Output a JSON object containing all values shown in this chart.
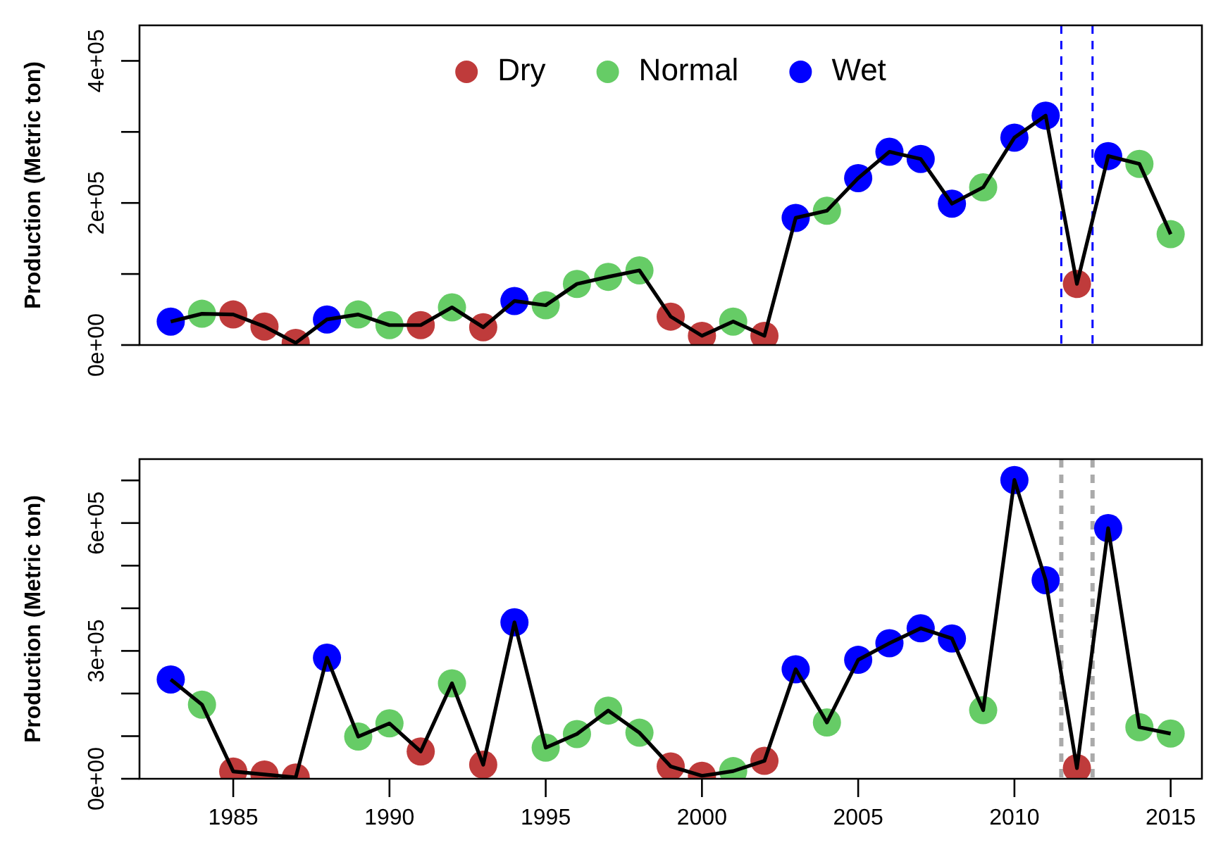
{
  "chart_data": [
    {
      "type": "line",
      "ylabel": "Production (Metric ton)",
      "x": [
        1983,
        1984,
        1985,
        1986,
        1987,
        1988,
        1989,
        1990,
        1991,
        1992,
        1993,
        1994,
        1995,
        1996,
        1997,
        1998,
        1999,
        2000,
        2001,
        2002,
        2003,
        2004,
        2005,
        2006,
        2007,
        2008,
        2009,
        2010,
        2011,
        2012,
        2013,
        2014,
        2015
      ],
      "xlim": [
        1982,
        2016
      ],
      "ylim": [
        0,
        450000
      ],
      "yticks": [
        {
          "value": 0,
          "label": "0e+00"
        },
        {
          "value": 100000,
          "label": null
        },
        {
          "value": 200000,
          "label": "2e+05"
        },
        {
          "value": 300000,
          "label": null
        },
        {
          "value": 400000,
          "label": "4e+05"
        }
      ],
      "tick_labels": "y",
      "grid": false,
      "legend": "top",
      "series": [
        {
          "marker": "none",
          "color": "#000000",
          "values": [
            33000,
            44000,
            43000,
            26000,
            3000,
            36000,
            43000,
            28000,
            28000,
            53000,
            25000,
            62000,
            56000,
            86000,
            96000,
            105000,
            40000,
            13000,
            33000,
            13000,
            179000,
            189000,
            235000,
            272000,
            262000,
            199000,
            222000,
            292000,
            323000,
            86000,
            266000,
            255000,
            156000
          ]
        },
        {
          "type": "scatter",
          "marker": "circle",
          "name": "Dry",
          "color": "#bf3b3b",
          "values": [
            null,
            null,
            43000,
            26000,
            3000,
            null,
            null,
            null,
            28000,
            null,
            25000,
            null,
            null,
            null,
            null,
            null,
            40000,
            13000,
            null,
            13000,
            null,
            null,
            null,
            null,
            null,
            null,
            null,
            null,
            null,
            86000,
            null,
            null,
            null
          ]
        },
        {
          "type": "scatter",
          "marker": "circle",
          "name": "Normal",
          "color": "#66cc66",
          "values": [
            null,
            44000,
            null,
            null,
            null,
            null,
            43000,
            28000,
            null,
            53000,
            null,
            null,
            56000,
            86000,
            96000,
            105000,
            null,
            null,
            33000,
            null,
            null,
            189000,
            null,
            null,
            null,
            null,
            222000,
            null,
            null,
            null,
            null,
            255000,
            156000
          ]
        },
        {
          "type": "scatter",
          "marker": "circle",
          "name": "Wet",
          "color": "#0000ff",
          "values": [
            33000,
            null,
            null,
            null,
            null,
            36000,
            null,
            null,
            null,
            null,
            null,
            62000,
            null,
            null,
            null,
            null,
            null,
            null,
            null,
            null,
            179000,
            null,
            235000,
            272000,
            262000,
            199000,
            null,
            292000,
            323000,
            null,
            266000,
            null,
            null
          ]
        }
      ],
      "ref_lines": [
        {
          "axis": "x",
          "value": 2011.5,
          "color": "#0000ff",
          "line_style": "dashed"
        },
        {
          "axis": "x",
          "value": 2012.5,
          "color": "#0000ff",
          "line_style": "dashed"
        }
      ]
    },
    {
      "type": "line",
      "ylabel": "Production (Metric ton)",
      "x": [
        1983,
        1984,
        1985,
        1986,
        1987,
        1988,
        1989,
        1990,
        1991,
        1992,
        1993,
        1994,
        1995,
        1996,
        1997,
        1998,
        1999,
        2000,
        2001,
        2002,
        2003,
        2004,
        2005,
        2006,
        2007,
        2008,
        2009,
        2010,
        2011,
        2012,
        2013,
        2014,
        2015
      ],
      "xlim": [
        1982,
        2016
      ],
      "xticks": [
        1985,
        1990,
        1995,
        2000,
        2005,
        2010,
        2015
      ],
      "ylim": [
        0,
        750000
      ],
      "yticks": [
        {
          "value": 0,
          "label": "0e+00"
        },
        {
          "value": 100000,
          "label": null
        },
        {
          "value": 200000,
          "label": null
        },
        {
          "value": 300000,
          "label": "3e+05"
        },
        {
          "value": 400000,
          "label": null
        },
        {
          "value": 500000,
          "label": null
        },
        {
          "value": 600000,
          "label": "6e+05"
        },
        {
          "value": 700000,
          "label": null
        }
      ],
      "grid": false,
      "series": [
        {
          "marker": "none",
          "color": "#000000",
          "values": [
            233000,
            174000,
            17000,
            10000,
            3000,
            284000,
            99000,
            130000,
            64000,
            224000,
            33000,
            367000,
            73000,
            105000,
            160000,
            108000,
            29000,
            7000,
            18000,
            42000,
            257000,
            132000,
            279000,
            318000,
            353000,
            329000,
            161000,
            701000,
            466000,
            25000,
            588000,
            121000,
            106000
          ]
        },
        {
          "type": "scatter",
          "marker": "circle",
          "color": "#bf3b3b",
          "values": [
            null,
            null,
            17000,
            10000,
            3000,
            null,
            null,
            null,
            64000,
            null,
            33000,
            null,
            null,
            null,
            null,
            null,
            29000,
            7000,
            null,
            42000,
            null,
            null,
            null,
            null,
            null,
            null,
            null,
            null,
            null,
            25000,
            null,
            null,
            null
          ]
        },
        {
          "type": "scatter",
          "marker": "circle",
          "color": "#66cc66",
          "values": [
            null,
            174000,
            null,
            null,
            null,
            null,
            99000,
            130000,
            null,
            224000,
            null,
            null,
            73000,
            105000,
            160000,
            108000,
            null,
            null,
            18000,
            null,
            null,
            132000,
            null,
            null,
            null,
            null,
            161000,
            null,
            null,
            null,
            null,
            121000,
            106000
          ]
        },
        {
          "type": "scatter",
          "marker": "circle",
          "color": "#0000ff",
          "values": [
            233000,
            null,
            null,
            null,
            null,
            284000,
            null,
            null,
            null,
            null,
            null,
            367000,
            null,
            null,
            null,
            null,
            null,
            null,
            null,
            null,
            257000,
            null,
            279000,
            318000,
            353000,
            329000,
            null,
            701000,
            466000,
            null,
            588000,
            null,
            null
          ]
        }
      ],
      "ref_lines": [
        {
          "axis": "x",
          "value": 2011.5,
          "color": "#aaaaaa",
          "line_style": "dashed"
        },
        {
          "axis": "x",
          "value": 2012.5,
          "color": "#aaaaaa",
          "line_style": "dashed"
        }
      ]
    }
  ]
}
